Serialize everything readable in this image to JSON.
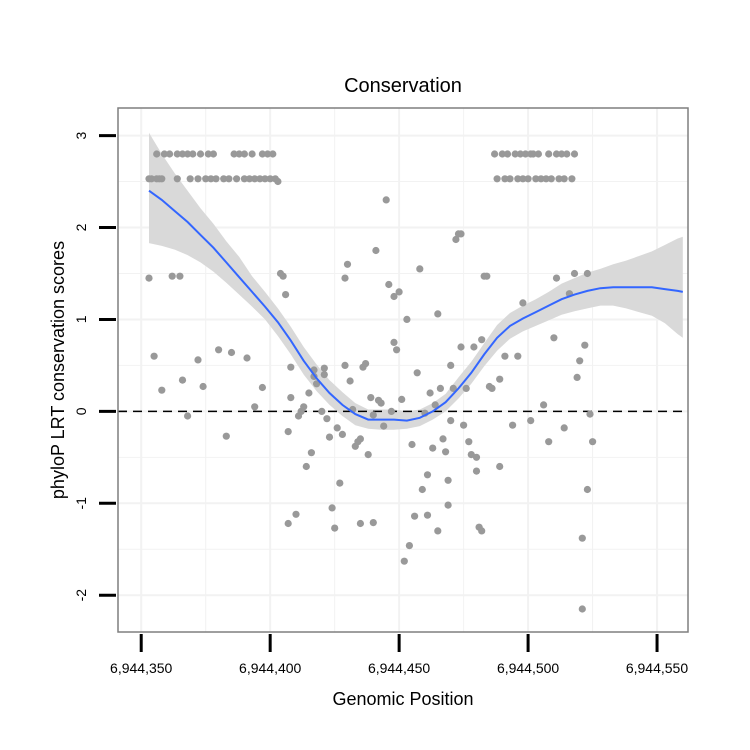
{
  "chart_data": {
    "type": "scatter",
    "title": "Conservation",
    "xlabel": "Genomic Position",
    "ylabel": "phyloP LRT conservation scores",
    "xlim": [
      6944341,
      6944562
    ],
    "ylim": [
      -2.4,
      3.3
    ],
    "x_ticks": [
      6944350,
      6944400,
      6944450,
      6944500,
      6944550
    ],
    "x_tick_labels": [
      "6,944,350",
      "6,944,400",
      "6,944,450",
      "6,944,500",
      "6,944,550"
    ],
    "y_ticks": [
      -2,
      -1,
      0,
      1,
      2,
      3
    ],
    "y_tick_labels": [
      "-2",
      "-1",
      "0",
      "1",
      "2",
      "3"
    ],
    "reference_line": {
      "y": 0,
      "style": "dashed"
    },
    "colors": {
      "points": "#999999",
      "smooth": "#3366ff",
      "ribbon": "#d9d9d9",
      "border": "#7f7f7f",
      "grid": "#f2f2f2"
    },
    "points": [
      [
        6944353,
        1.45
      ],
      [
        6944353,
        2.53
      ],
      [
        6944354,
        2.53
      ],
      [
        6944355,
        0.6
      ],
      [
        6944356,
        2.8
      ],
      [
        6944356,
        2.53
      ],
      [
        6944357,
        2.53
      ],
      [
        6944358,
        2.53
      ],
      [
        6944358,
        0.23
      ],
      [
        6944359,
        2.8
      ],
      [
        6944361,
        2.8
      ],
      [
        6944362,
        1.47
      ],
      [
        6944364,
        2.8
      ],
      [
        6944364,
        2.53
      ],
      [
        6944365,
        1.47
      ],
      [
        6944366,
        0.34
      ],
      [
        6944366,
        2.8
      ],
      [
        6944368,
        2.8
      ],
      [
        6944368,
        -0.05
      ],
      [
        6944369,
        2.53
      ],
      [
        6944370,
        2.8
      ],
      [
        6944372,
        0.56
      ],
      [
        6944372,
        2.53
      ],
      [
        6944373,
        2.8
      ],
      [
        6944374,
        0.27
      ],
      [
        6944375,
        2.53
      ],
      [
        6944376,
        2.8
      ],
      [
        6944377,
        2.53
      ],
      [
        6944378,
        2.8
      ],
      [
        6944379,
        2.53
      ],
      [
        6944380,
        0.67
      ],
      [
        6944382,
        2.53
      ],
      [
        6944383,
        -0.27
      ],
      [
        6944384,
        2.53
      ],
      [
        6944385,
        0.64
      ],
      [
        6944386,
        2.8
      ],
      [
        6944387,
        2.53
      ],
      [
        6944388,
        2.8
      ],
      [
        6944390,
        2.53
      ],
      [
        6944390,
        2.8
      ],
      [
        6944391,
        0.58
      ],
      [
        6944392,
        2.53
      ],
      [
        6944393,
        2.8
      ],
      [
        6944394,
        0.05
      ],
      [
        6944394,
        2.53
      ],
      [
        6944396,
        2.53
      ],
      [
        6944397,
        0.26
      ],
      [
        6944397,
        2.8
      ],
      [
        6944398,
        2.53
      ],
      [
        6944399,
        2.8
      ],
      [
        6944400,
        2.53
      ],
      [
        6944401,
        2.8
      ],
      [
        6944402,
        2.53
      ],
      [
        6944403,
        2.5
      ],
      [
        6944404,
        1.5
      ],
      [
        6944405,
        1.47
      ],
      [
        6944406,
        1.27
      ],
      [
        6944407,
        -1.22
      ],
      [
        6944407,
        -0.22
      ],
      [
        6944408,
        0.48
      ],
      [
        6944408,
        0.15
      ],
      [
        6944410,
        -1.12
      ],
      [
        6944411,
        -0.05
      ],
      [
        6944412,
        0.0
      ],
      [
        6944413,
        0.05
      ],
      [
        6944414,
        -0.6
      ],
      [
        6944415,
        0.2
      ],
      [
        6944416,
        -0.45
      ],
      [
        6944417,
        0.38
      ],
      [
        6944417,
        0.45
      ],
      [
        6944418,
        0.3
      ],
      [
        6944420,
        0.0
      ],
      [
        6944421,
        0.4
      ],
      [
        6944421,
        0.47
      ],
      [
        6944422,
        -0.08
      ],
      [
        6944423,
        -0.28
      ],
      [
        6944424,
        -1.05
      ],
      [
        6944425,
        -1.27
      ],
      [
        6944426,
        -0.18
      ],
      [
        6944427,
        -0.78
      ],
      [
        6944428,
        -0.25
      ],
      [
        6944429,
        0.5
      ],
      [
        6944429,
        1.45
      ],
      [
        6944430,
        1.6
      ],
      [
        6944431,
        0.33
      ],
      [
        6944432,
        0.02
      ],
      [
        6944433,
        -0.38
      ],
      [
        6944434,
        -0.33
      ],
      [
        6944435,
        -1.22
      ],
      [
        6944435,
        -0.3
      ],
      [
        6944436,
        0.48
      ],
      [
        6944437,
        0.52
      ],
      [
        6944438,
        -0.47
      ],
      [
        6944439,
        0.15
      ],
      [
        6944440,
        -1.21
      ],
      [
        6944440,
        -0.04
      ],
      [
        6944441,
        1.75
      ],
      [
        6944442,
        0.12
      ],
      [
        6944443,
        0.09
      ],
      [
        6944444,
        -0.16
      ],
      [
        6944445,
        2.3
      ],
      [
        6944446,
        1.38
      ],
      [
        6944447,
        0.0
      ],
      [
        6944448,
        1.25
      ],
      [
        6944448,
        0.75
      ],
      [
        6944449,
        0.67
      ],
      [
        6944450,
        1.3
      ],
      [
        6944451,
        0.13
      ],
      [
        6944452,
        -1.63
      ],
      [
        6944453,
        1.0
      ],
      [
        6944454,
        -1.46
      ],
      [
        6944455,
        -0.36
      ],
      [
        6944456,
        -1.14
      ],
      [
        6944457,
        0.42
      ],
      [
        6944458,
        1.55
      ],
      [
        6944459,
        -0.85
      ],
      [
        6944460,
        -0.02
      ],
      [
        6944461,
        -0.69
      ],
      [
        6944461,
        -1.13
      ],
      [
        6944462,
        0.2
      ],
      [
        6944463,
        -0.4
      ],
      [
        6944464,
        0.07
      ],
      [
        6944465,
        1.06
      ],
      [
        6944465,
        -1.3
      ],
      [
        6944466,
        0.25
      ],
      [
        6944467,
        -0.3
      ],
      [
        6944468,
        -0.44
      ],
      [
        6944469,
        -1.02
      ],
      [
        6944469,
        -0.75
      ],
      [
        6944470,
        0.5
      ],
      [
        6944470,
        -0.1
      ],
      [
        6944471,
        0.25
      ],
      [
        6944472,
        1.87
      ],
      [
        6944473,
        1.93
      ],
      [
        6944474,
        1.93
      ],
      [
        6944474,
        0.7
      ],
      [
        6944475,
        -0.15
      ],
      [
        6944476,
        0.25
      ],
      [
        6944477,
        -0.33
      ],
      [
        6944478,
        -0.47
      ],
      [
        6944479,
        0.7
      ],
      [
        6944480,
        -0.5
      ],
      [
        6944480,
        -0.65
      ],
      [
        6944481,
        -1.26
      ],
      [
        6944482,
        -1.3
      ],
      [
        6944482,
        0.78
      ],
      [
        6944483,
        1.47
      ],
      [
        6944484,
        1.47
      ],
      [
        6944485,
        0.27
      ],
      [
        6944486,
        0.25
      ],
      [
        6944487,
        2.8
      ],
      [
        6944488,
        2.53
      ],
      [
        6944489,
        -0.6
      ],
      [
        6944489,
        0.35
      ],
      [
        6944490,
        2.8
      ],
      [
        6944491,
        2.53
      ],
      [
        6944491,
        0.6
      ],
      [
        6944492,
        2.8
      ],
      [
        6944493,
        2.53
      ],
      [
        6944494,
        -0.15
      ],
      [
        6944495,
        2.8
      ],
      [
        6944496,
        2.53
      ],
      [
        6944496,
        0.6
      ],
      [
        6944497,
        2.8
      ],
      [
        6944498,
        2.53
      ],
      [
        6944498,
        1.18
      ],
      [
        6944499,
        2.8
      ],
      [
        6944500,
        2.53
      ],
      [
        6944501,
        2.8
      ],
      [
        6944501,
        -0.1
      ],
      [
        6944502,
        2.8
      ],
      [
        6944503,
        2.53
      ],
      [
        6944504,
        2.8
      ],
      [
        6944505,
        2.53
      ],
      [
        6944506,
        0.07
      ],
      [
        6944507,
        2.53
      ],
      [
        6944508,
        -0.33
      ],
      [
        6944508,
        2.8
      ],
      [
        6944509,
        2.53
      ],
      [
        6944510,
        0.8
      ],
      [
        6944511,
        2.8
      ],
      [
        6944511,
        1.45
      ],
      [
        6944512,
        2.53
      ],
      [
        6944513,
        2.8
      ],
      [
        6944514,
        -0.18
      ],
      [
        6944514,
        2.53
      ],
      [
        6944515,
        2.8
      ],
      [
        6944516,
        1.28
      ],
      [
        6944517,
        2.53
      ],
      [
        6944518,
        2.8
      ],
      [
        6944518,
        1.5
      ],
      [
        6944519,
        0.37
      ],
      [
        6944520,
        0.55
      ],
      [
        6944521,
        -1.38
      ],
      [
        6944521,
        -2.15
      ],
      [
        6944522,
        0.72
      ],
      [
        6944523,
        -0.85
      ],
      [
        6944523,
        1.5
      ],
      [
        6944524,
        -0.03
      ],
      [
        6944525,
        -0.33
      ]
    ],
    "smooth_x": [
      6944353,
      6944358,
      6944363,
      6944368,
      6944373,
      6944378,
      6944383,
      6944388,
      6944393,
      6944398,
      6944403,
      6944408,
      6944413,
      6944418,
      6944423,
      6944428,
      6944433,
      6944438,
      6944443,
      6944448,
      6944453,
      6944458,
      6944463,
      6944468,
      6944473,
      6944478,
      6944483,
      6944488,
      6944493,
      6944498,
      6944503,
      6944508,
      6944513,
      6944518,
      6944523,
      6944528,
      6944533,
      6944538,
      6944543,
      6944548,
      6944553,
      6944558,
      6944560
    ],
    "smooth_y": [
      2.4,
      2.3,
      2.18,
      2.06,
      1.92,
      1.78,
      1.62,
      1.46,
      1.3,
      1.14,
      0.97,
      0.77,
      0.55,
      0.36,
      0.2,
      0.07,
      -0.03,
      -0.09,
      -0.09,
      -0.09,
      -0.1,
      -0.07,
      0.0,
      0.1,
      0.25,
      0.42,
      0.62,
      0.8,
      0.93,
      1.01,
      1.08,
      1.15,
      1.22,
      1.27,
      1.31,
      1.34,
      1.35,
      1.35,
      1.35,
      1.35,
      1.33,
      1.31,
      1.3
    ],
    "ribbon_low": [
      1.83,
      1.8,
      1.76,
      1.7,
      1.62,
      1.52,
      1.4,
      1.27,
      1.14,
      1.0,
      0.82,
      0.62,
      0.4,
      0.22,
      0.07,
      -0.05,
      -0.15,
      -0.19,
      -0.2,
      -0.2,
      -0.19,
      -0.16,
      -0.09,
      0.0,
      0.14,
      0.3,
      0.49,
      0.66,
      0.79,
      0.87,
      0.93,
      0.99,
      1.05,
      1.09,
      1.12,
      1.15,
      1.15,
      1.12,
      1.08,
      1.04,
      0.96,
      0.84,
      0.8
    ],
    "ribbon_high": [
      3.03,
      2.8,
      2.59,
      2.4,
      2.21,
      2.04,
      1.85,
      1.68,
      1.47,
      1.3,
      1.12,
      0.92,
      0.7,
      0.51,
      0.34,
      0.21,
      0.09,
      0.02,
      0.02,
      0.02,
      0.0,
      0.02,
      0.09,
      0.19,
      0.37,
      0.54,
      0.74,
      0.94,
      1.07,
      1.15,
      1.22,
      1.3,
      1.39,
      1.45,
      1.51,
      1.55,
      1.6,
      1.64,
      1.69,
      1.74,
      1.81,
      1.88,
      1.9
    ]
  }
}
